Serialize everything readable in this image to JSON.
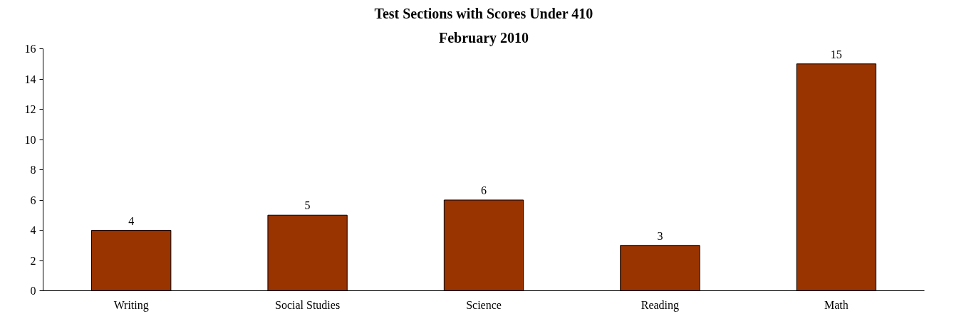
{
  "chart_data": {
    "type": "bar",
    "title": "Test Sections with Scores Under 410",
    "subtitle": "February 2010",
    "categories": [
      "Writing",
      "Social Studies",
      "Science",
      "Reading",
      "Math"
    ],
    "values": [
      4,
      5,
      6,
      3,
      15
    ],
    "color": "#993300",
    "ylim": [
      0,
      16
    ],
    "yticks": [
      0,
      2,
      4,
      6,
      8,
      10,
      12,
      14,
      16
    ],
    "grid": false,
    "data_labels": true
  }
}
